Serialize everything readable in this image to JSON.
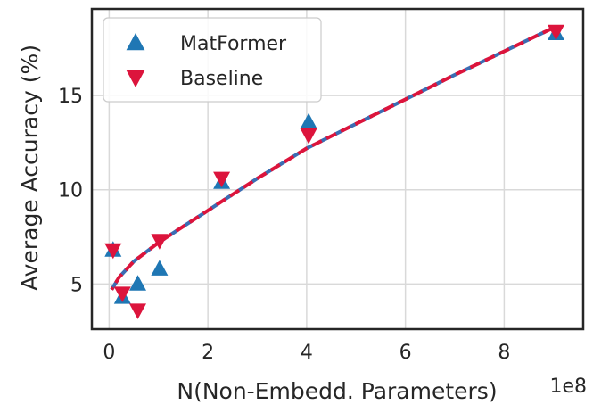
{
  "chart_data": {
    "type": "scatter",
    "title": "",
    "xlabel": "N(Non-Embedd. Parameters)",
    "ylabel": "Average Accuracy (%)",
    "x_exponent_label": "1e8",
    "x_scale": 100000000,
    "xlim": [
      -0.35,
      9.6
    ],
    "ylim": [
      2.6,
      19.6
    ],
    "xticks": [
      0,
      2,
      4,
      6,
      8
    ],
    "yticks": [
      5,
      10,
      15
    ],
    "grid": true,
    "legend_position": "upper-left",
    "colors": {
      "matformer": "#1f77b4",
      "baseline": "#dc143c",
      "fit_baseline": "#dc143c",
      "fit_matformer": "#3b6db3"
    },
    "series": [
      {
        "name": "MatFormer",
        "marker": "triangle-up",
        "x": [
          0.08,
          0.27,
          0.58,
          1.02,
          2.28,
          4.04,
          9.05
        ],
        "y": [
          6.8,
          4.3,
          5.0,
          5.8,
          10.4,
          13.6,
          18.3
        ]
      },
      {
        "name": "Baseline",
        "marker": "triangle-down",
        "x": [
          0.08,
          0.27,
          0.58,
          1.02,
          2.28,
          4.04,
          9.05
        ],
        "y": [
          6.8,
          4.5,
          3.6,
          7.3,
          10.6,
          12.9,
          18.4
        ]
      }
    ],
    "fit": {
      "style": "dashed",
      "x": [
        0.05,
        0.2,
        0.5,
        1.0,
        1.5,
        2.0,
        2.5,
        3.0,
        3.5,
        4.0,
        5.0,
        6.0,
        7.0,
        8.0,
        9.0
      ],
      "y": [
        4.7,
        5.35,
        6.2,
        7.2,
        8.05,
        8.9,
        9.75,
        10.6,
        11.4,
        12.2,
        13.5,
        14.8,
        16.1,
        17.35,
        18.6
      ]
    }
  }
}
